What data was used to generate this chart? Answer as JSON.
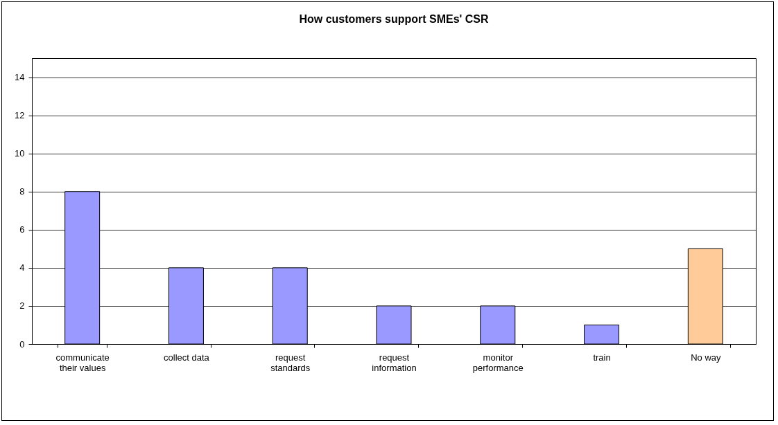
{
  "chart_data": {
    "type": "bar",
    "title": "How customers support SMEs' CSR",
    "categories": [
      "communicate their values",
      "collect data",
      "request standards",
      "request information",
      "monitor performance",
      "train",
      "No way"
    ],
    "values": [
      8,
      4,
      4,
      2,
      2,
      1,
      5
    ],
    "colors": [
      "#9999ff",
      "#9999ff",
      "#9999ff",
      "#9999ff",
      "#9999ff",
      "#9999ff",
      "#ffcc99"
    ],
    "ylim": [
      0,
      15
    ],
    "yticks": [
      0,
      2,
      4,
      6,
      8,
      10,
      12,
      14
    ],
    "grid": "y"
  }
}
